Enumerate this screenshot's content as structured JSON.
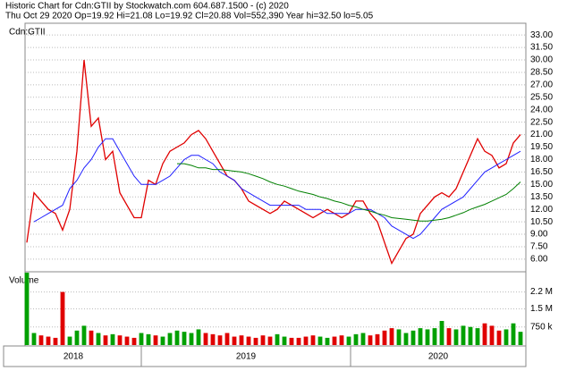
{
  "chart_data": [
    {
      "type": "line",
      "title": "Historic Chart for Cdn:GTII by Stockwatch.com 604.687.1500 - (c) 2020",
      "subtitle": "Thu Oct 29 2020  Op=19.92  Hi=21.08  Lo=19.92  Cl=20.88  Vol=552,390  Year hi=32.50  lo=5.05",
      "panel_label": "Cdn:GTII",
      "ylim": [
        4.7,
        34.2
      ],
      "yticks": [
        {
          "value": 6,
          "label": "6.00"
        },
        {
          "value": 7.5,
          "label": "7.50"
        },
        {
          "value": 9,
          "label": "9.00"
        },
        {
          "value": 10.5,
          "label": "10.50"
        },
        {
          "value": 12,
          "label": "12.00"
        },
        {
          "value": 13.5,
          "label": "13.50"
        },
        {
          "value": 15,
          "label": "15.00"
        },
        {
          "value": 16.5,
          "label": "16.50"
        },
        {
          "value": 18,
          "label": "18.00"
        },
        {
          "value": 19.5,
          "label": "19.50"
        },
        {
          "value": 21,
          "label": "21.00"
        },
        {
          "value": 22.5,
          "label": "22.50"
        },
        {
          "value": 24,
          "label": "24.00"
        },
        {
          "value": 25.5,
          "label": "25.50"
        },
        {
          "value": 27,
          "label": "27.00"
        },
        {
          "value": 28.5,
          "label": "28.50"
        },
        {
          "value": 30,
          "label": "30.00"
        },
        {
          "value": 31.5,
          "label": "31.50"
        },
        {
          "value": 33,
          "label": "33.00"
        }
      ],
      "grid": true,
      "series": [
        {
          "color": "#e00000",
          "values": [
            8,
            14,
            13,
            12,
            11.5,
            9.5,
            12,
            19,
            30,
            22,
            23,
            18,
            19,
            14,
            12.5,
            11,
            11,
            15.5,
            15,
            17.5,
            19,
            19.5,
            20,
            21,
            21.5,
            20.5,
            19,
            17.5,
            16,
            15.5,
            14.5,
            13,
            12.5,
            12,
            11.5,
            12,
            13,
            12.5,
            12,
            11.5,
            11,
            11.5,
            12,
            11.5,
            11,
            11.5,
            13,
            13,
            11.5,
            10.5,
            8,
            5.5,
            7,
            8.5,
            9,
            11.5,
            12.5,
            13.5,
            14,
            13.5,
            14.5,
            16.5,
            18.5,
            20.5,
            19,
            18.5,
            17,
            17.5,
            20,
            21
          ]
        },
        {
          "color": "#2020ff",
          "values": [
            null,
            10.5,
            11,
            11.5,
            12,
            12.5,
            14.5,
            15.5,
            17,
            18,
            19.5,
            20.5,
            20.5,
            19,
            17.5,
            16,
            15,
            15,
            15,
            15.5,
            16,
            17,
            18,
            18.5,
            18.5,
            18,
            17.5,
            16.5,
            16,
            15.5,
            14.5,
            14,
            13.5,
            13,
            12.5,
            12.5,
            12.5,
            12.5,
            12.5,
            12,
            12,
            12,
            11.5,
            11.5,
            11.5,
            11.5,
            12,
            12,
            12,
            11.5,
            11,
            10,
            9.5,
            9,
            8.5,
            9,
            10,
            11,
            12,
            12.5,
            13,
            13.5,
            14.5,
            15.5,
            16.5,
            17,
            17.5,
            18,
            18.5,
            19
          ]
        },
        {
          "color": "#008000",
          "values": [
            null,
            null,
            null,
            null,
            null,
            null,
            null,
            null,
            null,
            null,
            null,
            null,
            null,
            null,
            null,
            null,
            null,
            null,
            null,
            null,
            null,
            17.5,
            17.5,
            17.3,
            17,
            17,
            16.8,
            16.8,
            16.7,
            16.6,
            16.5,
            16.3,
            16,
            15.7,
            15.3,
            15,
            14.8,
            14.5,
            14.2,
            14,
            13.8,
            13.5,
            13.3,
            13,
            12.8,
            12.5,
            12.3,
            12,
            11.8,
            11.5,
            11.3,
            11,
            10.9,
            10.8,
            10.7,
            10.6,
            10.6,
            10.7,
            10.8,
            11,
            11.3,
            11.6,
            12,
            12.3,
            12.6,
            13,
            13.4,
            13.8,
            14.5,
            15.3
          ]
        }
      ]
    },
    {
      "type": "bar",
      "panel_label": "Volume",
      "ylim": [
        0,
        3000000
      ],
      "yticks": [
        {
          "value": 750000,
          "label": "750 k"
        },
        {
          "value": 1500000,
          "label": "1.5 M"
        },
        {
          "value": 2200000,
          "label": "2.2 M"
        }
      ],
      "grid": true,
      "up_color": "#00a000",
      "down_color": "#e00000",
      "x_labels": [
        "2018",
        "2019",
        "2020"
      ],
      "values": [
        3000000,
        500000,
        400000,
        350000,
        300000,
        2200000,
        350000,
        600000,
        800000,
        600000,
        500000,
        400000,
        450000,
        400000,
        350000,
        300000,
        500000,
        450000,
        400000,
        350000,
        500000,
        600000,
        550000,
        500000,
        650000,
        500000,
        450000,
        400000,
        500000,
        350000,
        400000,
        350000,
        300000,
        400000,
        350000,
        450000,
        350000,
        300000,
        300000,
        350000,
        400000,
        350000,
        300000,
        350000,
        400000,
        350000,
        450000,
        500000,
        400000,
        450000,
        600000,
        700000,
        650000,
        500000,
        600000,
        700000,
        650000,
        700000,
        1000000,
        700000,
        650000,
        800000,
        750000,
        700000,
        900000,
        800000,
        600000,
        650000,
        900000,
        550000
      ]
    }
  ]
}
